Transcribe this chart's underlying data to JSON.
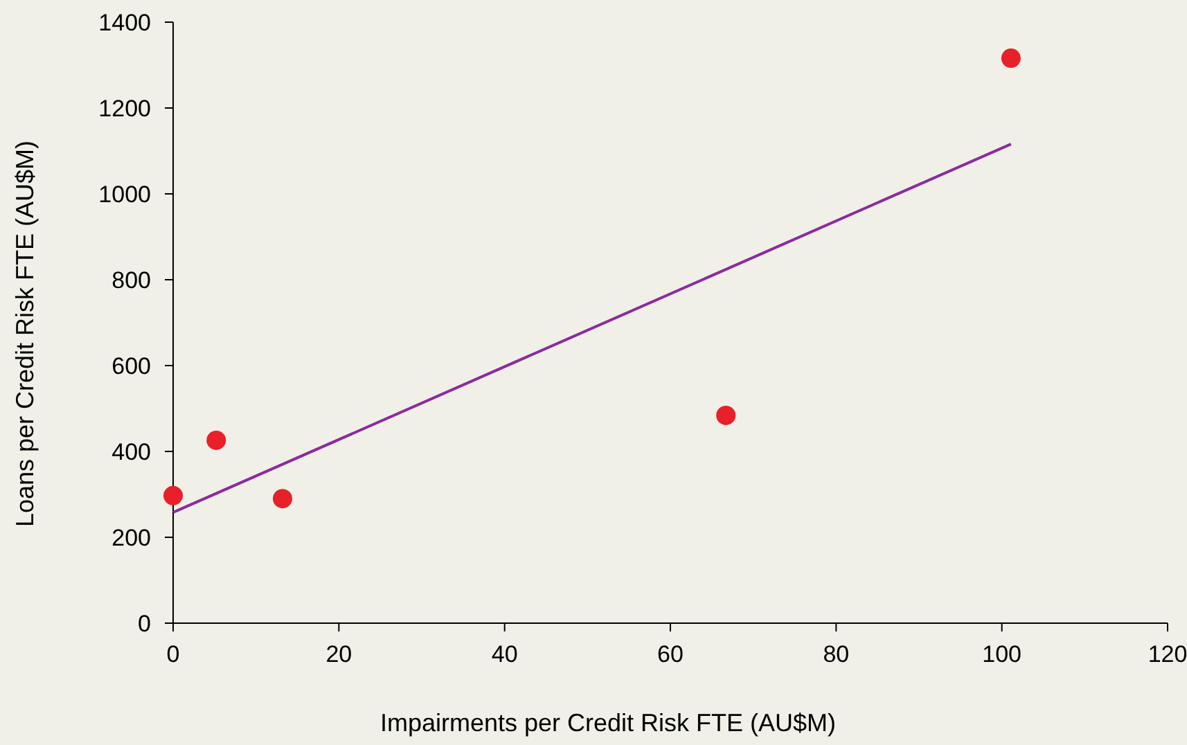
{
  "chart_data": {
    "type": "scatter",
    "xlabel": "Impairments per Credit Risk FTE (AU$M)",
    "ylabel": "Loans per Credit Risk FTE (AU$M)",
    "xlim": [
      0,
      120
    ],
    "xticks": [
      0,
      20,
      40,
      60,
      80,
      100,
      120
    ],
    "ylim": [
      0,
      1400
    ],
    "yticks": [
      0,
      200,
      400,
      600,
      800,
      1000,
      1200,
      1400
    ],
    "grid": false,
    "series": [
      {
        "color": "#e8202a",
        "marker": "circle",
        "x": [
          0,
          5.2,
          13.2,
          66.7,
          101.1
        ],
        "values": [
          297,
          426,
          290,
          484,
          1316
        ]
      },
      {
        "type": "line",
        "marker": "none",
        "color": "#8b2b9e",
        "x": [
          0,
          101.1
        ],
        "values": [
          258,
          1116
        ]
      }
    ]
  }
}
